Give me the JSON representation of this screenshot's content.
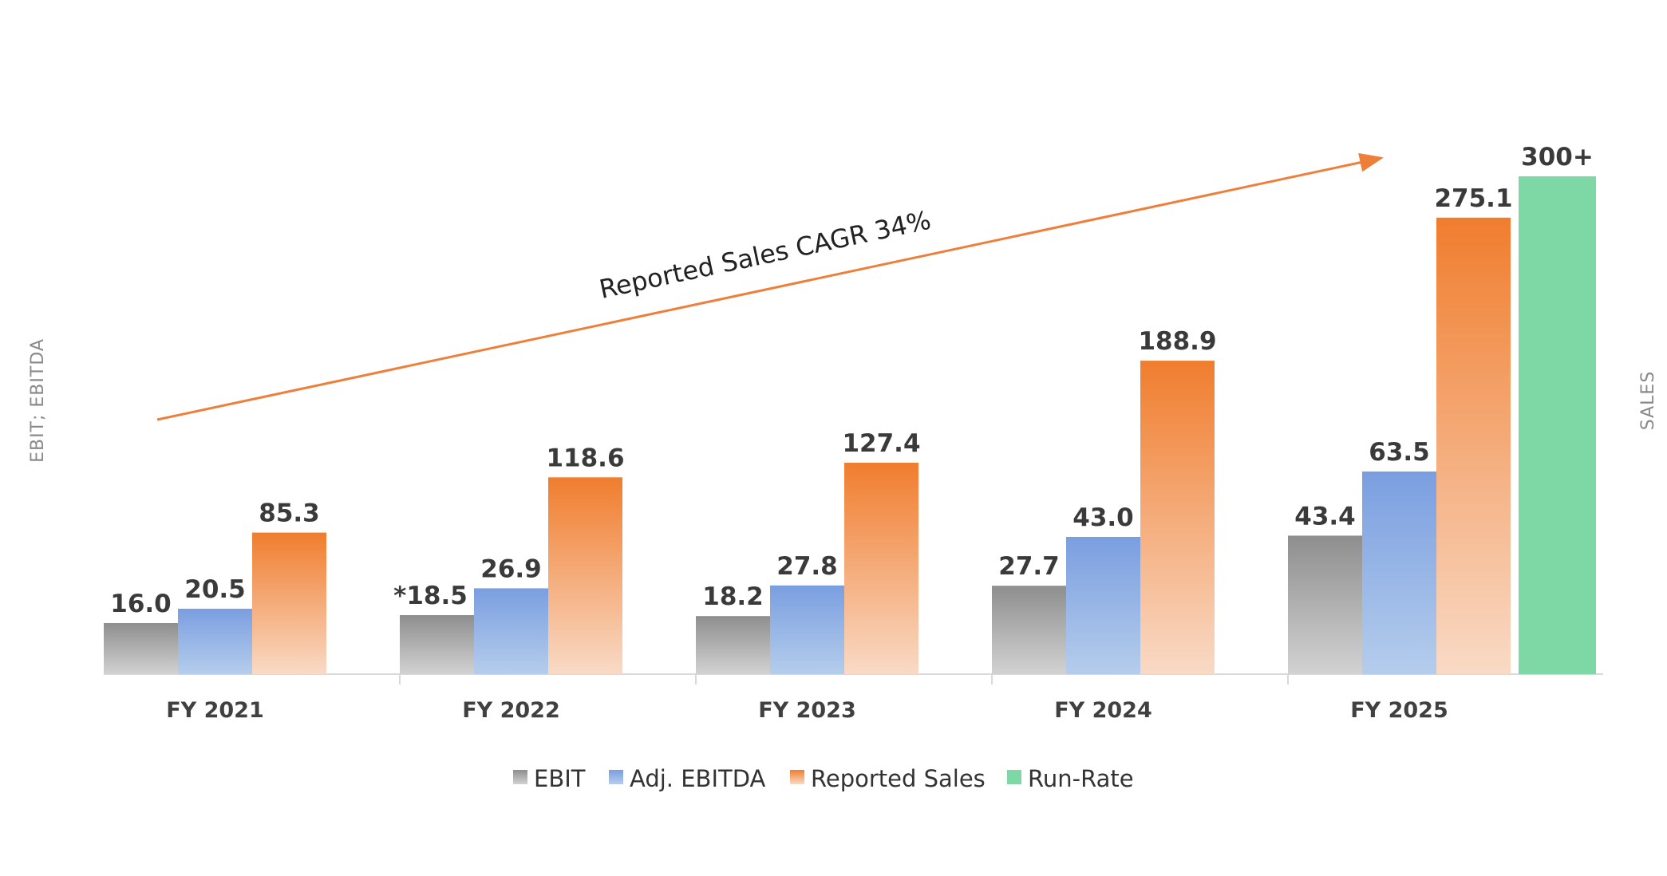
{
  "chart_data": {
    "type": "bar",
    "title": "",
    "categories": [
      "FY 2021",
      "FY 2022",
      "FY 2023",
      "FY 2024",
      "FY 2025"
    ],
    "series": [
      {
        "name": "EBIT",
        "axis": "left",
        "values": [
          16.0,
          18.5,
          18.2,
          27.7,
          43.4
        ],
        "labels": [
          "16.0",
          "*18.5",
          "18.2",
          "27.7",
          "43.4"
        ],
        "color": "#a0a0a0"
      },
      {
        "name": "Adj. EBITDA",
        "axis": "left",
        "values": [
          20.5,
          26.9,
          27.8,
          43.0,
          63.5
        ],
        "labels": [
          "20.5",
          "26.9",
          "27.8",
          "43.0",
          "63.5"
        ],
        "color": "#85a6e0"
      },
      {
        "name": "Reported Sales",
        "axis": "right",
        "values": [
          85.3,
          118.6,
          127.4,
          188.9,
          275.1
        ],
        "labels": [
          "85.3",
          "118.6",
          "127.4",
          "188.9",
          "275.1"
        ],
        "color": "#f08a45"
      },
      {
        "name": "Run-Rate",
        "axis": "right",
        "values": [
          null,
          null,
          null,
          null,
          300
        ],
        "labels": [
          "",
          "",
          "",
          "",
          "300+"
        ],
        "color": "#7dd8a6"
      }
    ],
    "ylabel_left": "EBIT; EBITDA",
    "ylabel_right": "SALES",
    "annotation": "Reported Sales CAGR 34%",
    "legend_position": "bottom",
    "grid": false
  }
}
